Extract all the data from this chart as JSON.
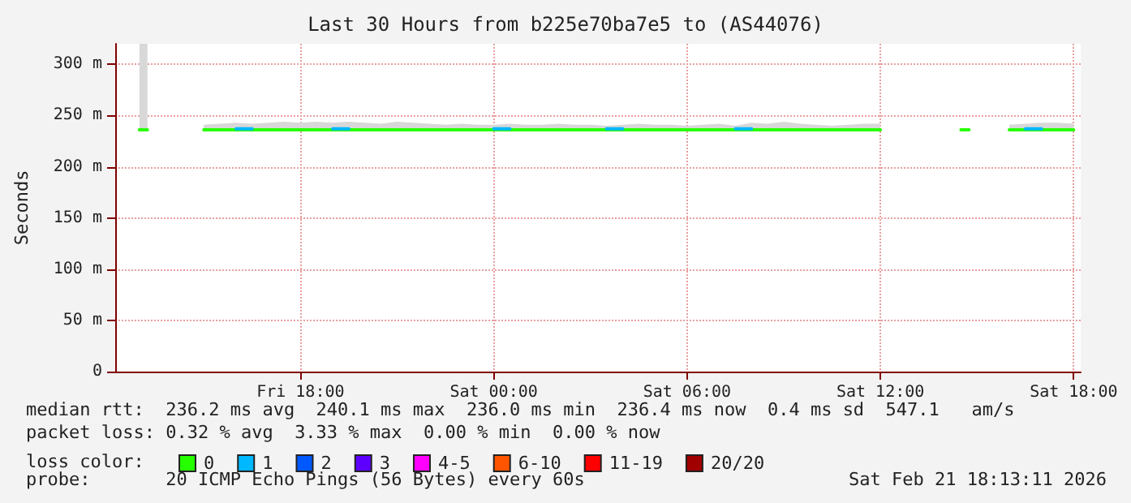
{
  "chart_data": {
    "type": "line",
    "title": "Last 30 Hours from b225e70ba7e5 to (AS44076)",
    "ylabel": "Seconds",
    "legend_title": "loss color:",
    "legend": "bottom",
    "grid": true,
    "marker": "none",
    "x": [
      "2026-02-20T13:00",
      "2026-02-20T13:15",
      "2026-02-20T13:30",
      "2026-02-20T14:00",
      "2026-02-20T14:30",
      "2026-02-20T15:00",
      "2026-02-20T15:30",
      "2026-02-20T16:00",
      "2026-02-20T16:30",
      "2026-02-20T17:00",
      "2026-02-20T17:30",
      "2026-02-20T18:00",
      "2026-02-20T18:30",
      "2026-02-20T19:00",
      "2026-02-20T19:30",
      "2026-02-20T20:00",
      "2026-02-20T20:30",
      "2026-02-20T21:00",
      "2026-02-20T21:30",
      "2026-02-20T22:00",
      "2026-02-20T22:30",
      "2026-02-20T23:00",
      "2026-02-20T23:30",
      "2026-02-21T00:00",
      "2026-02-21T00:30",
      "2026-02-21T01:00",
      "2026-02-21T01:30",
      "2026-02-21T02:00",
      "2026-02-21T02:30",
      "2026-02-21T03:00",
      "2026-02-21T03:30",
      "2026-02-21T04:00",
      "2026-02-21T04:30",
      "2026-02-21T05:00",
      "2026-02-21T05:30",
      "2026-02-21T06:00",
      "2026-02-21T06:30",
      "2026-02-21T07:00",
      "2026-02-21T07:30",
      "2026-02-21T08:00",
      "2026-02-21T08:30",
      "2026-02-21T09:00",
      "2026-02-21T09:30",
      "2026-02-21T10:00",
      "2026-02-21T10:30",
      "2026-02-21T11:00",
      "2026-02-21T11:30",
      "2026-02-21T12:00",
      "2026-02-21T12:30",
      "2026-02-21T13:00",
      "2026-02-21T13:30",
      "2026-02-21T14:00",
      "2026-02-21T14:30",
      "2026-02-21T14:45",
      "2026-02-21T15:00",
      "2026-02-21T15:30",
      "2026-02-21T16:00",
      "2026-02-21T16:30",
      "2026-02-21T17:00",
      "2026-02-21T17:30",
      "2026-02-21T18:00"
    ],
    "xlim": [
      "2026-02-20T12:15",
      "2026-02-21T18:13"
    ],
    "xticks": [
      {
        "value": "2026-02-20T18:00",
        "label": "Fri 18:00"
      },
      {
        "value": "2026-02-21T00:00",
        "label": "Sat 00:00"
      },
      {
        "value": "2026-02-21T06:00",
        "label": "Sat 06:00"
      },
      {
        "value": "2026-02-21T12:00",
        "label": "Sat 12:00"
      },
      {
        "value": "2026-02-21T18:00",
        "label": "Sat 18:00"
      }
    ],
    "ylim": [
      0,
      320
    ],
    "yticks": [
      0,
      {
        "value": 50,
        "label": "50 m"
      },
      {
        "value": 100,
        "label": "100 m"
      },
      {
        "value": 150,
        "label": "150 m"
      },
      {
        "value": 200,
        "label": "200 m"
      },
      {
        "value": 250,
        "label": "250 m"
      },
      {
        "value": 300,
        "label": "300 m"
      }
    ],
    "series": [
      {
        "name": "0",
        "color": "#26ff00",
        "values": [
          236,
          236,
          null,
          null,
          null,
          236,
          236,
          236,
          236,
          236,
          236,
          236,
          236,
          236,
          236,
          236,
          236,
          236,
          236,
          236,
          236,
          236,
          236,
          236,
          236,
          236,
          236,
          236,
          236,
          236,
          236,
          236,
          236,
          236,
          236,
          236,
          236,
          236,
          236,
          236,
          236,
          236,
          236,
          236,
          236,
          236,
          236,
          236,
          null,
          null,
          null,
          null,
          236,
          236,
          null,
          null,
          236,
          236,
          236,
          236,
          236
        ],
        "lower": [
          235,
          235,
          null,
          null,
          null,
          235,
          235,
          235,
          235,
          235,
          235,
          235,
          235,
          235,
          235,
          235,
          235,
          235,
          235,
          235,
          235,
          235,
          235,
          235,
          235,
          235,
          235,
          235,
          235,
          235,
          235,
          235,
          235,
          235,
          235,
          235,
          235,
          235,
          235,
          235,
          235,
          235,
          235,
          235,
          235,
          235,
          235,
          235,
          null,
          null,
          null,
          null,
          null,
          null,
          null,
          null,
          235,
          235,
          235,
          235,
          235
        ],
        "upper": [
          320,
          320,
          null,
          null,
          null,
          241,
          242,
          243,
          242,
          243,
          244,
          243,
          244,
          243,
          244,
          243,
          242,
          244,
          243,
          242,
          241,
          242,
          241,
          241,
          242,
          241,
          241,
          242,
          241,
          241,
          240,
          241,
          242,
          241,
          241,
          240,
          241,
          242,
          240,
          243,
          242,
          244,
          242,
          241,
          240,
          241,
          242,
          242,
          null,
          null,
          null,
          null,
          null,
          null,
          null,
          null,
          241,
          242,
          243,
          243,
          242
        ]
      },
      {
        "name": "1",
        "color": "#00b8ff",
        "values": [
          null,
          null,
          null,
          null,
          null,
          null,
          null,
          237,
          237,
          null,
          null,
          null,
          null,
          237,
          237,
          null,
          null,
          null,
          null,
          null,
          null,
          null,
          null,
          237,
          237,
          null,
          null,
          null,
          null,
          null,
          237,
          237,
          null,
          null,
          null,
          null,
          null,
          null,
          237,
          237,
          null,
          null,
          null,
          null,
          null,
          null,
          null,
          null,
          null,
          null,
          null,
          null,
          null,
          null,
          null,
          null,
          null,
          237,
          237,
          null,
          null
        ]
      },
      {
        "name": "2",
        "color": "#0059ff",
        "values": [
          null,
          null,
          null,
          null,
          null,
          null,
          null,
          null,
          null,
          null,
          null,
          null,
          null,
          null,
          null,
          null,
          null,
          null,
          null,
          null,
          null,
          null,
          null,
          null,
          null,
          null,
          null,
          null,
          null,
          null,
          null,
          null,
          null,
          null,
          null,
          null,
          null,
          null,
          null,
          null,
          null,
          null,
          null,
          null,
          null,
          null,
          null,
          null,
          null,
          null,
          null,
          null,
          null,
          null,
          null,
          null,
          null,
          null,
          null,
          null,
          null
        ]
      },
      {
        "name": "3",
        "color": "#5e00ff",
        "values": [
          null,
          null,
          null,
          null,
          null,
          null,
          null,
          null,
          null,
          null,
          null,
          null,
          null,
          null,
          null,
          null,
          null,
          null,
          null,
          null,
          null,
          null,
          null,
          null,
          null,
          null,
          null,
          null,
          null,
          null,
          null,
          null,
          null,
          null,
          null,
          null,
          null,
          null,
          null,
          null,
          null,
          null,
          null,
          null,
          null,
          null,
          null,
          null,
          null,
          null,
          null,
          null,
          null,
          null,
          null,
          null,
          null,
          null,
          null,
          null,
          null
        ]
      },
      {
        "name": "4-5",
        "color": "#ff00ff",
        "values": [
          null,
          null,
          null,
          null,
          null,
          null,
          null,
          null,
          null,
          null,
          null,
          null,
          null,
          null,
          null,
          null,
          null,
          null,
          null,
          null,
          null,
          null,
          null,
          null,
          null,
          null,
          null,
          null,
          null,
          null,
          null,
          null,
          null,
          null,
          null,
          null,
          null,
          null,
          null,
          null,
          null,
          null,
          null,
          null,
          null,
          null,
          null,
          null,
          null,
          null,
          null,
          null,
          null,
          null,
          null,
          null,
          null,
          null,
          null,
          null,
          null
        ]
      },
      {
        "name": "6-10",
        "color": "#ff5500",
        "values": [
          null,
          null,
          null,
          null,
          null,
          null,
          null,
          null,
          null,
          null,
          null,
          null,
          null,
          null,
          null,
          null,
          null,
          null,
          null,
          null,
          null,
          null,
          null,
          null,
          null,
          null,
          null,
          null,
          null,
          null,
          null,
          null,
          null,
          null,
          null,
          null,
          null,
          null,
          null,
          null,
          null,
          null,
          null,
          null,
          null,
          null,
          null,
          null,
          null,
          null,
          null,
          null,
          null,
          null,
          null,
          null,
          null,
          null,
          null,
          null,
          null
        ]
      },
      {
        "name": "11-19",
        "color": "#ff0000",
        "values": [
          null,
          null,
          null,
          null,
          null,
          null,
          null,
          null,
          null,
          null,
          null,
          null,
          null,
          null,
          null,
          null,
          null,
          null,
          null,
          null,
          null,
          null,
          null,
          null,
          null,
          null,
          null,
          null,
          null,
          null,
          null,
          null,
          null,
          null,
          null,
          null,
          null,
          null,
          null,
          null,
          null,
          null,
          null,
          null,
          null,
          null,
          null,
          null,
          null,
          null,
          null,
          null,
          null,
          null,
          null,
          null,
          null,
          null,
          null,
          null,
          null
        ]
      },
      {
        "name": "20/20",
        "color": "#a10000",
        "values": [
          null,
          null,
          null,
          null,
          null,
          null,
          null,
          null,
          null,
          null,
          null,
          null,
          null,
          null,
          null,
          null,
          null,
          null,
          null,
          null,
          null,
          null,
          null,
          null,
          null,
          null,
          null,
          null,
          null,
          null,
          null,
          null,
          null,
          null,
          null,
          null,
          null,
          null,
          null,
          null,
          null,
          null,
          null,
          null,
          null,
          null,
          null,
          null,
          null,
          null,
          null,
          null,
          null,
          null,
          null,
          null,
          null,
          null,
          null,
          null,
          null
        ]
      }
    ],
    "annotations": [
      "median rtt:  236.2 ms avg  240.1 ms max  236.0 ms min  236.4 ms now  0.4 ms sd  547.1   am/s",
      "packet loss: 0.32 % avg  3.33 % max  0.00 % min  0.00 % now",
      "probe:       20 ICMP Echo Pings (56 Bytes) every 60s",
      "Sat Feb 21 18:13:11 2026"
    ]
  }
}
